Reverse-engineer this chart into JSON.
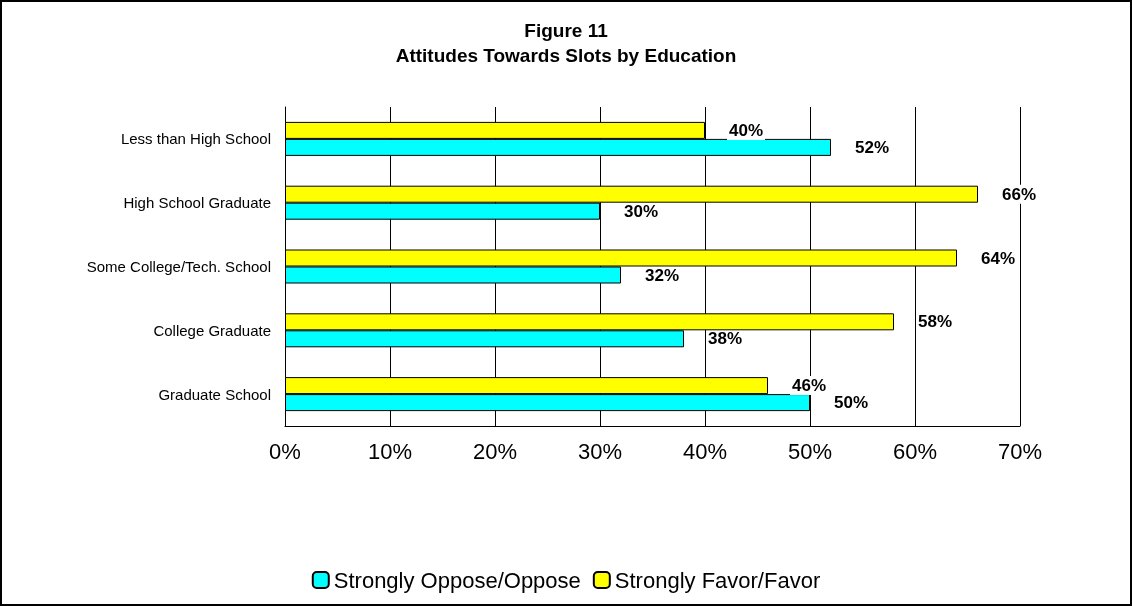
{
  "chart_data": {
    "type": "bar",
    "orientation": "horizontal",
    "title": "Figure 11",
    "subtitle": "Attitudes Towards Slots by Education",
    "categories": [
      "Less than High School",
      "High School Graduate",
      "Some College/Tech. School",
      "College Graduate",
      "Graduate School"
    ],
    "series": [
      {
        "name": "Strongly Oppose/Oppose",
        "color": "#00ffff",
        "values": [
          52,
          30,
          32,
          38,
          50
        ],
        "value_labels": [
          "52%",
          "30%",
          "32%",
          "38%",
          "50%"
        ]
      },
      {
        "name": "Strongly Favor/Favor",
        "color": "#ffff00",
        "values": [
          40,
          66,
          64,
          58,
          46
        ],
        "value_labels": [
          "40%",
          "66%",
          "64%",
          "58%",
          "46%"
        ]
      }
    ],
    "xlim": [
      0,
      70
    ],
    "xticks": [
      {
        "value": 0,
        "label": "0%"
      },
      {
        "value": 10,
        "label": "10%"
      },
      {
        "value": 20,
        "label": "20%"
      },
      {
        "value": 30,
        "label": "30%"
      },
      {
        "value": 40,
        "label": "40%"
      },
      {
        "value": 50,
        "label": "50%"
      },
      {
        "value": 60,
        "label": "60%"
      },
      {
        "value": 70,
        "label": "70%"
      }
    ],
    "grid": "x",
    "legend": "bottom"
  }
}
